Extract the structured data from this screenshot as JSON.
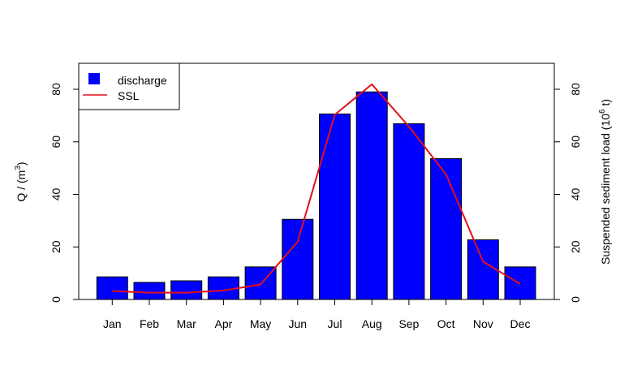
{
  "chart_data": {
    "type": "bar",
    "title": "",
    "categories": [
      "Jan",
      "Feb",
      "Mar",
      "Apr",
      "May",
      "Jun",
      "Jul",
      "Aug",
      "Sep",
      "Oct",
      "Nov",
      "Dec"
    ],
    "series": [
      {
        "name": "discharge",
        "kind": "bar",
        "axis": "left",
        "color": "#0000ff",
        "values": [
          8.6,
          6.5,
          7.1,
          8.6,
          12.4,
          30.5,
          70.6,
          79.0,
          66.9,
          53.6,
          22.7,
          12.4
        ]
      },
      {
        "name": "SSL",
        "kind": "line",
        "axis": "right",
        "color": "#e0101a",
        "values": [
          3.2,
          2.6,
          2.6,
          3.4,
          5.7,
          22.0,
          70.3,
          81.9,
          65.8,
          47.6,
          14.4,
          5.9
        ]
      }
    ],
    "ylabel": {
      "base": "Q / (m",
      "sup": "3",
      "end": ")"
    },
    "y2label": {
      "base": "Suspended sediment load (10",
      "sup": "6",
      "end": " t)"
    },
    "ylim": [
      0,
      90
    ],
    "y2lim": [
      0,
      90
    ],
    "yticks": [
      0,
      20,
      40,
      60,
      80
    ],
    "y2ticks": [
      0,
      20,
      40,
      60,
      80
    ],
    "grid": false,
    "legend_position": "top-left"
  }
}
